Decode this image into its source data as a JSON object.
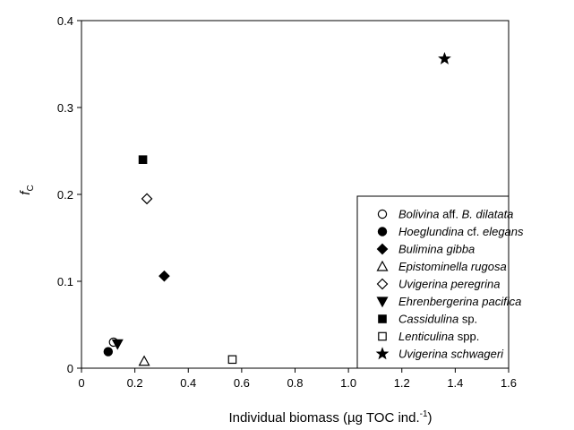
{
  "chart_data": {
    "type": "scatter",
    "xlabel": {
      "main": "Individual biomass (µg TOC ind.",
      "sup": "-1",
      "close": ")"
    },
    "ylabel": {
      "main": "f",
      "sub": "C"
    },
    "xlim": [
      0,
      1.6
    ],
    "ylim": [
      0,
      0.4
    ],
    "x_ticks": [
      0,
      0.2,
      0.4,
      0.6,
      0.8,
      1.0,
      1.2,
      1.4,
      1.6
    ],
    "x_tick_labels": [
      "0",
      "0.2",
      "0.4",
      "0.6",
      "0.8",
      "1.0",
      "1.2",
      "1.4",
      "1.6"
    ],
    "y_ticks": [
      0,
      0.1,
      0.2,
      0.3,
      0.4
    ],
    "y_tick_labels": [
      "0",
      "0.1",
      "0.2",
      "0.3",
      "0.4"
    ],
    "grid": false,
    "legend_position": "bottom-right",
    "series": [
      {
        "name_parts": [
          {
            "t": "Bolivina",
            "i": true
          },
          {
            "t": " aff. ",
            "i": false
          },
          {
            "t": "B. dilatata",
            "i": true
          }
        ],
        "marker": "circle-open",
        "x": [
          0.12
        ],
        "y": [
          0.03
        ]
      },
      {
        "name_parts": [
          {
            "t": "Hoeglundina",
            "i": true
          },
          {
            "t": " cf. ",
            "i": false
          },
          {
            "t": "elegans",
            "i": true
          }
        ],
        "marker": "circle-filled",
        "x": [
          0.1
        ],
        "y": [
          0.019
        ]
      },
      {
        "name_parts": [
          {
            "t": "Bulimina gibba",
            "i": true
          }
        ],
        "marker": "diamond-filled",
        "x": [
          0.31
        ],
        "y": [
          0.106
        ]
      },
      {
        "name_parts": [
          {
            "t": "Epistominella rugosa",
            "i": true
          }
        ],
        "marker": "triangle-up-open",
        "x": [
          0.235
        ],
        "y": [
          0.008
        ]
      },
      {
        "name_parts": [
          {
            "t": "Uvigerina peregrina",
            "i": true
          }
        ],
        "marker": "diamond-open",
        "x": [
          0.245
        ],
        "y": [
          0.195
        ]
      },
      {
        "name_parts": [
          {
            "t": "Ehrenbergerina pacifica",
            "i": true
          }
        ],
        "marker": "triangle-down-filled",
        "x": [
          0.135
        ],
        "y": [
          0.028
        ]
      },
      {
        "name_parts": [
          {
            "t": "Cassidulina",
            "i": true
          },
          {
            "t": " sp.",
            "i": false
          }
        ],
        "marker": "square-filled",
        "x": [
          0.23
        ],
        "y": [
          0.24
        ]
      },
      {
        "name_parts": [
          {
            "t": "Lenticulina",
            "i": true
          },
          {
            "t": " spp.",
            "i": false
          }
        ],
        "marker": "square-open",
        "x": [
          0.565
        ],
        "y": [
          0.01
        ]
      },
      {
        "name_parts": [
          {
            "t": "Uvigerina schwageri",
            "i": true
          }
        ],
        "marker": "star-filled",
        "x": [
          1.36
        ],
        "y": [
          0.356
        ]
      }
    ]
  }
}
